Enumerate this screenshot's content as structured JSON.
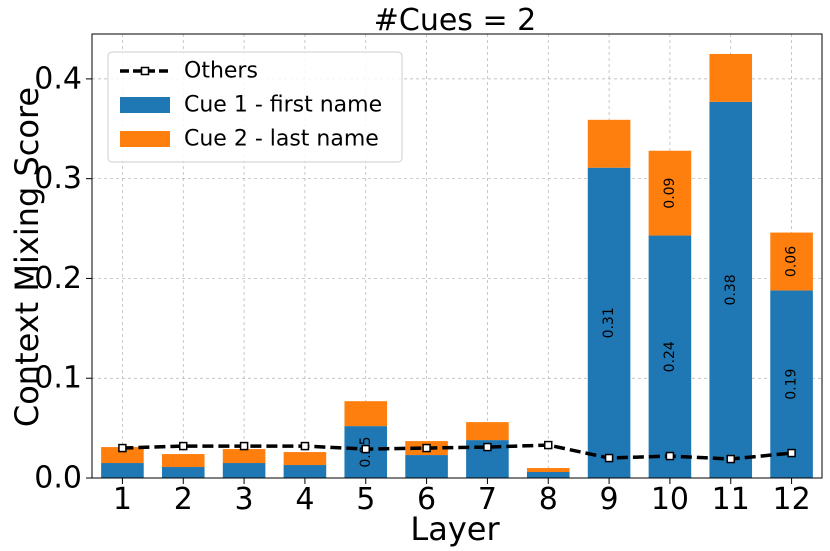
{
  "chart_data": {
    "type": "bar",
    "stacked": true,
    "title": "#Cues = 2",
    "xlabel": "Layer",
    "ylabel": "Context Mixing Score",
    "categories": [
      "1",
      "2",
      "3",
      "4",
      "5",
      "6",
      "7",
      "8",
      "9",
      "10",
      "11",
      "12"
    ],
    "series": [
      {
        "name": "Cue 1 - first name",
        "kind": "bar",
        "color": "#1f77b4",
        "values": [
          0.015,
          0.011,
          0.015,
          0.013,
          0.052,
          0.023,
          0.038,
          0.006,
          0.311,
          0.243,
          0.377,
          0.188
        ]
      },
      {
        "name": "Cue 2 - last name",
        "kind": "bar",
        "color": "#ff7f0e",
        "values": [
          0.016,
          0.013,
          0.014,
          0.013,
          0.025,
          0.014,
          0.018,
          0.004,
          0.048,
          0.085,
          0.048,
          0.058
        ]
      },
      {
        "name": "Others",
        "kind": "line",
        "color": "#000000",
        "linestyle": "dashed",
        "values": [
          0.03,
          0.032,
          0.032,
          0.032,
          0.029,
          0.03,
          0.031,
          0.033,
          0.02,
          0.022,
          0.019,
          0.025
        ]
      }
    ],
    "bar_labels": [
      {
        "layer": "5",
        "series": "Cue 1 - first name",
        "text": "0.05"
      },
      {
        "layer": "9",
        "series": "Cue 1 - first name",
        "text": "0.31"
      },
      {
        "layer": "10",
        "series": "Cue 1 - first name",
        "text": "0.24"
      },
      {
        "layer": "10",
        "series": "Cue 2 - last name",
        "text": "0.09"
      },
      {
        "layer": "11",
        "series": "Cue 1 - first name",
        "text": "0.38"
      },
      {
        "layer": "12",
        "series": "Cue 1 - first name",
        "text": "0.19"
      },
      {
        "layer": "12",
        "series": "Cue 2 - last name",
        "text": "0.06"
      }
    ],
    "ylim": [
      0,
      0.445
    ],
    "yticks": [
      0.0,
      0.1,
      0.2,
      0.3,
      0.4
    ],
    "ytick_labels": [
      "0.0",
      "0.1",
      "0.2",
      "0.3",
      "0.4"
    ],
    "grid": true,
    "legend": {
      "position": "upper-left",
      "entries": [
        "Others",
        "Cue 1 - first name",
        "Cue 2 - last name"
      ]
    }
  }
}
